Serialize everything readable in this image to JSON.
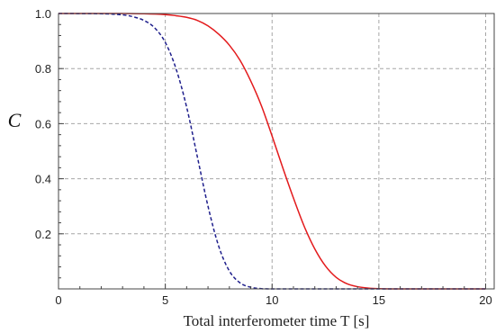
{
  "chart_data": {
    "type": "line",
    "title": "",
    "xlabel": "Total interferometer time T [s]",
    "ylabel": "C",
    "xlim": [
      0,
      20.4
    ],
    "ylim": [
      0,
      1.0
    ],
    "xticks": [
      0,
      5,
      10,
      15,
      20
    ],
    "xtick_labels": [
      "0",
      "5",
      "10",
      "15",
      "20"
    ],
    "yticks": [
      0.2,
      0.4,
      0.6,
      0.8,
      1.0
    ],
    "ytick_labels": [
      "0.2",
      "0.4",
      "0.6",
      "0.8",
      "1.0"
    ],
    "grid": true,
    "legend": "none",
    "series": [
      {
        "color": "#e31a1c",
        "style": "solid",
        "x": [
          0,
          2,
          3,
          4,
          5,
          5.5,
          6,
          6.5,
          7,
          7.5,
          8,
          8.5,
          9,
          9.5,
          10,
          10.5,
          11,
          11.5,
          12,
          12.5,
          13,
          13.5,
          14,
          14.5,
          15,
          16,
          17,
          18,
          19,
          20
        ],
        "y": [
          1.0,
          1.0,
          1.0,
          0.999,
          0.996,
          0.992,
          0.986,
          0.975,
          0.955,
          0.925,
          0.885,
          0.83,
          0.755,
          0.665,
          0.555,
          0.44,
          0.33,
          0.228,
          0.145,
          0.083,
          0.042,
          0.019,
          0.008,
          0.003,
          0.001,
          0.0,
          0.0,
          0.0,
          0.0,
          0.0
        ]
      },
      {
        "color": "#1f1f8c",
        "style": "dashed",
        "x": [
          0,
          2,
          3,
          3.5,
          4,
          4.5,
          5,
          5.5,
          6,
          6.5,
          7,
          7.5,
          8,
          8.5,
          9,
          9.5,
          10,
          11,
          12,
          14,
          16,
          18,
          20
        ],
        "y": [
          1.0,
          0.999,
          0.995,
          0.988,
          0.975,
          0.948,
          0.895,
          0.8,
          0.66,
          0.48,
          0.3,
          0.155,
          0.065,
          0.022,
          0.006,
          0.001,
          0.0,
          0.0,
          0.0,
          0.0,
          0.0,
          0.0,
          0.0
        ]
      }
    ]
  }
}
